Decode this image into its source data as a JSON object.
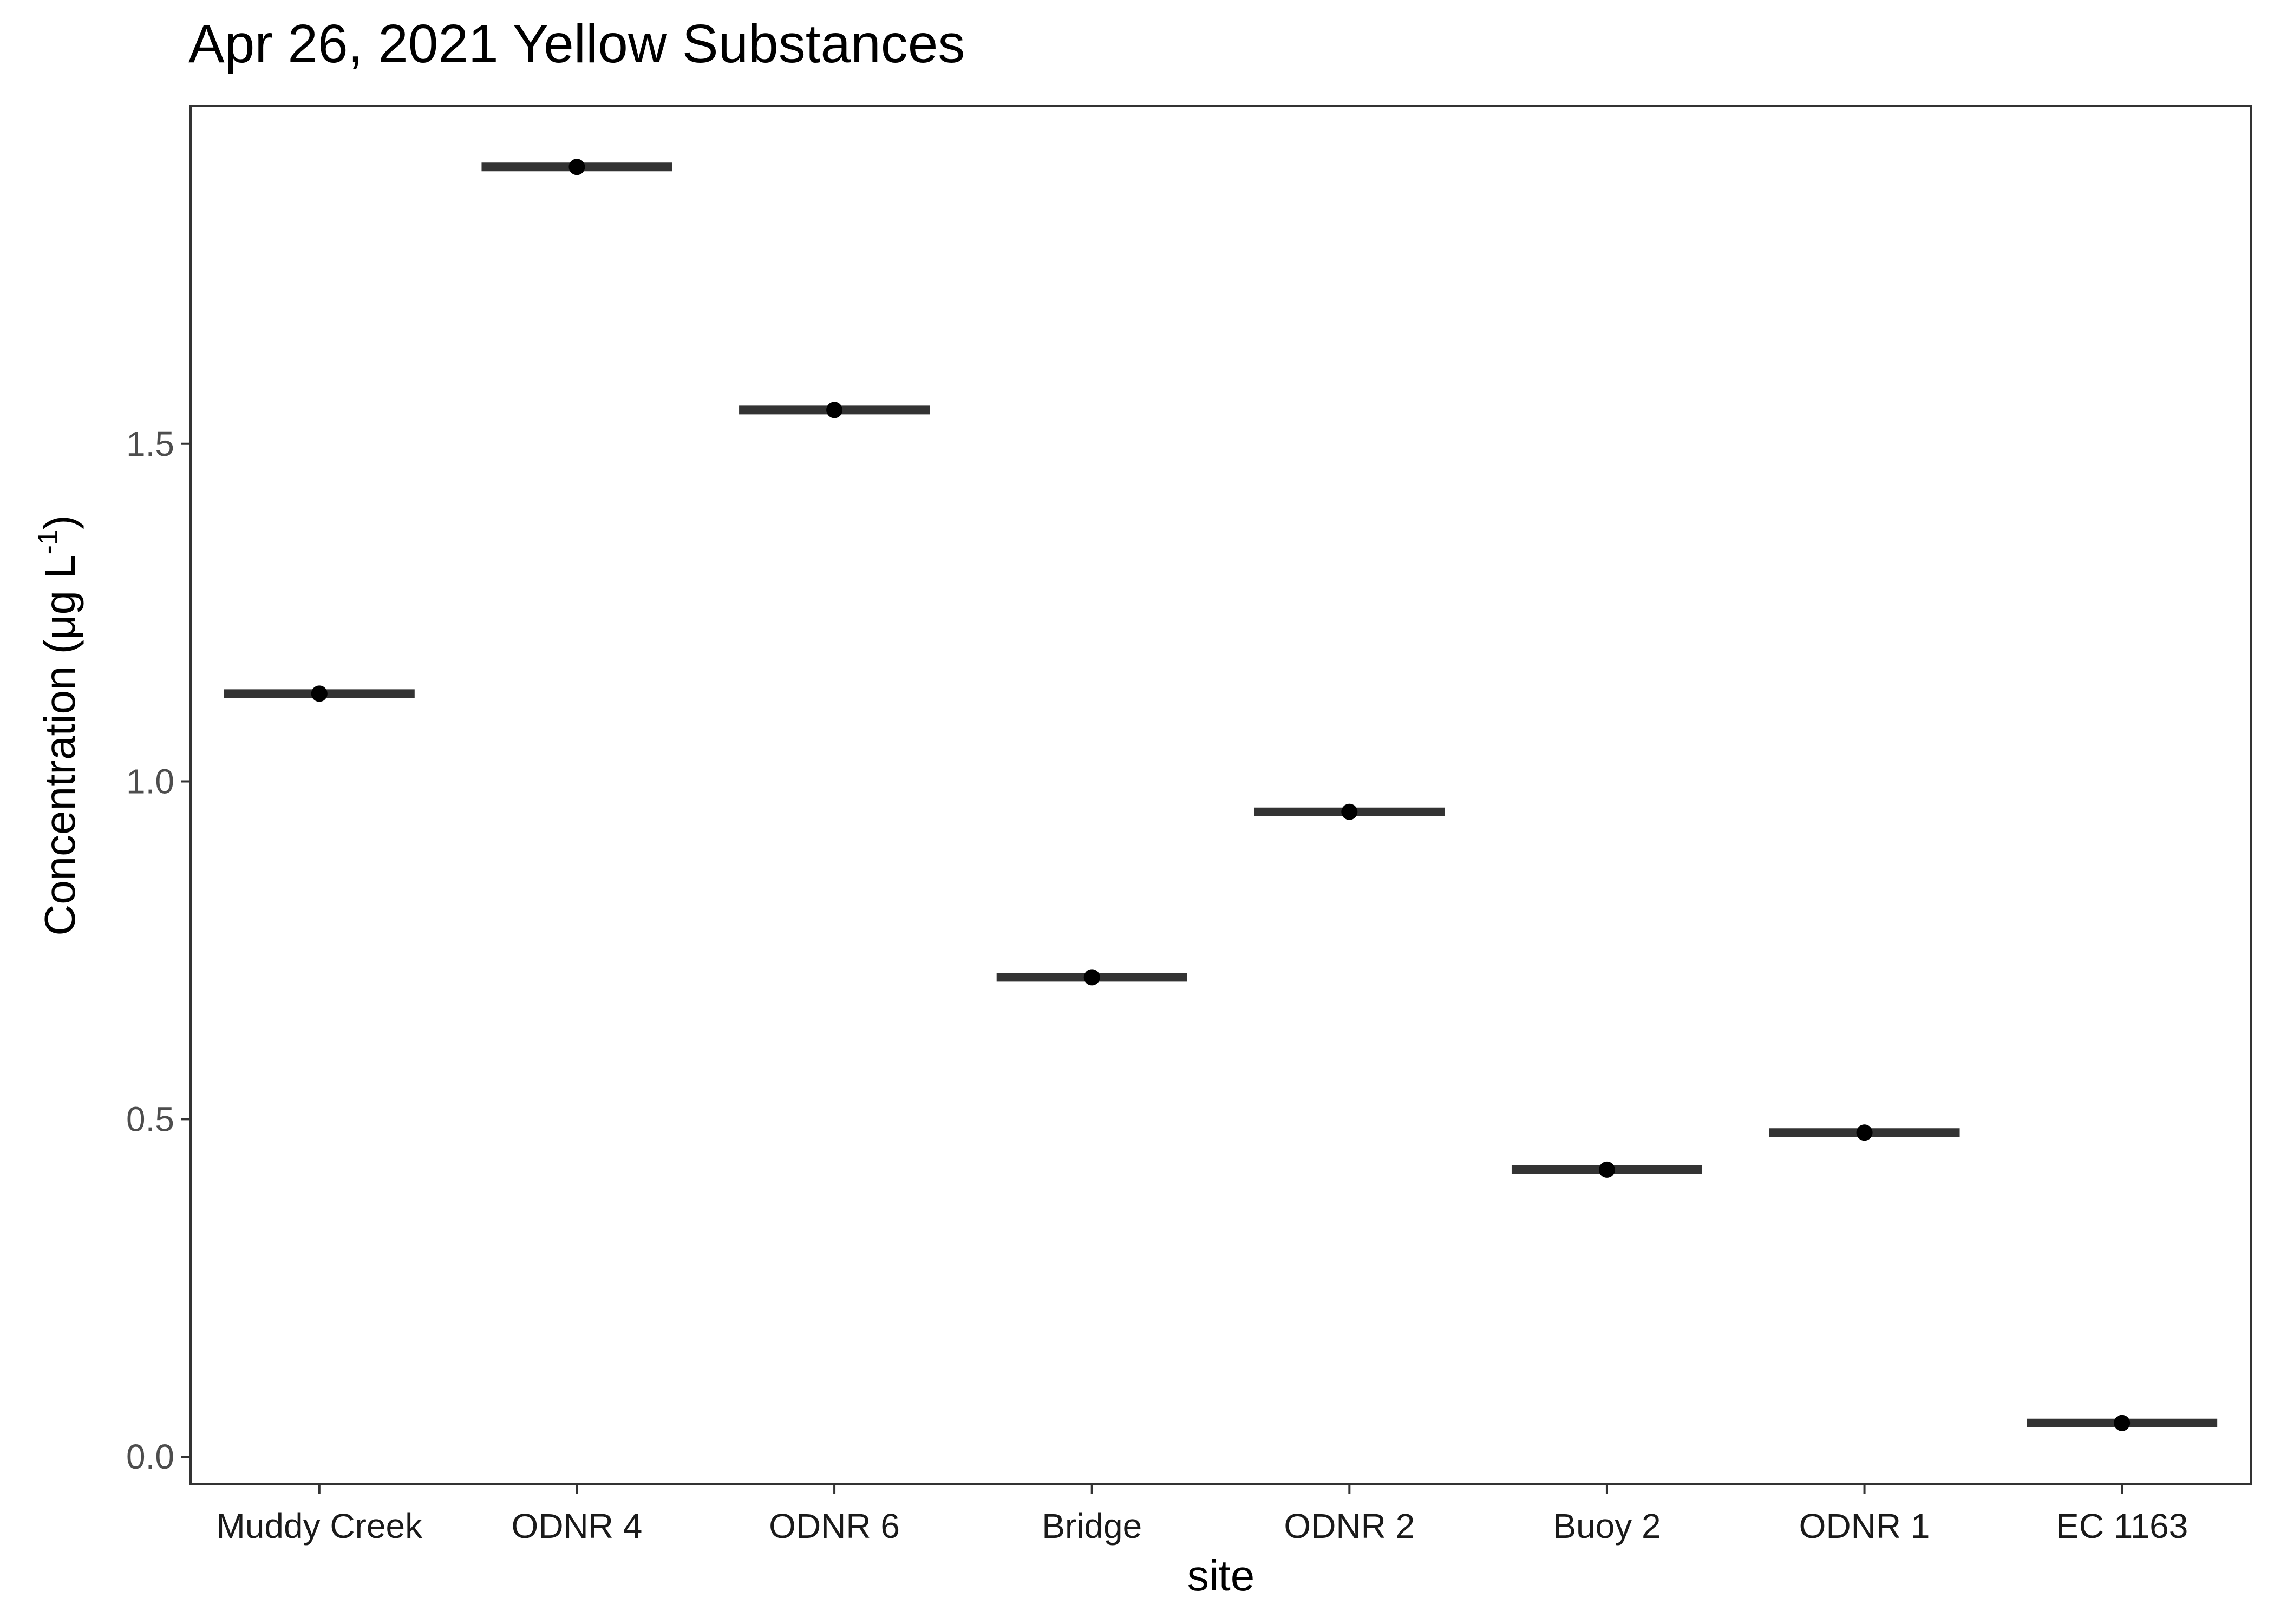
{
  "chart_data": {
    "type": "scatter",
    "title": "Apr 26, 2021 Yellow Substances",
    "xlabel": "site",
    "ylabel": "Concentration (μg L",
    "ylabel_sup": "-1",
    "ylabel_close": ")",
    "categories": [
      "Muddy Creek",
      "ODNR 4",
      "ODNR 6",
      "Bridge",
      "ODNR 2",
      "Buoy 2",
      "ODNR 1",
      "EC 1163"
    ],
    "values": [
      1.13,
      1.91,
      1.55,
      0.71,
      0.955,
      0.425,
      0.48,
      0.05
    ],
    "ylim": [
      -0.04,
      2.0
    ],
    "yticks": [
      0.0,
      0.5,
      1.0,
      1.5
    ],
    "ytick_labels": [
      "0.0",
      "0.5",
      "1.0",
      "1.5"
    ],
    "grid": false,
    "legend": "none",
    "marker": "point with horizontal crossbar at each site value",
    "colors": {
      "points": "#000000",
      "crossbar": "#333333",
      "panel_border": "#333333"
    }
  }
}
